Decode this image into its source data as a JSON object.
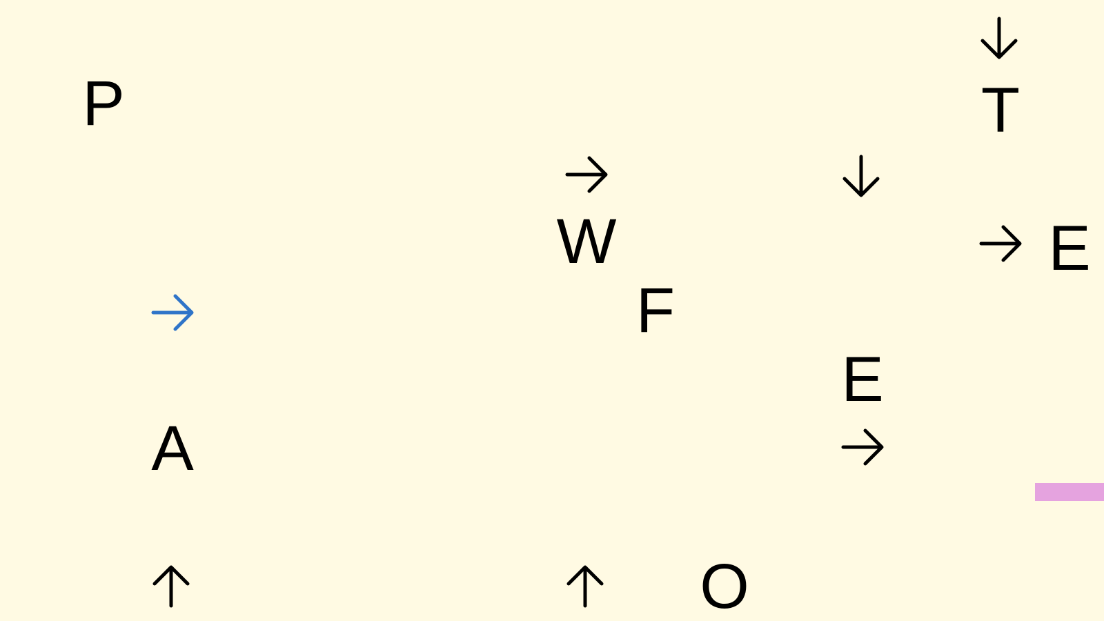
{
  "board": {
    "letters": {
      "p": "P",
      "t": "T",
      "w": "W",
      "e_right": "E",
      "f": "F",
      "e_mid": "E",
      "a": "A",
      "o": "O"
    },
    "arrows": [
      {
        "direction": "down",
        "icon": "arrow-down-icon",
        "color": "#000000"
      },
      {
        "direction": "right",
        "icon": "arrow-right-icon",
        "color": "#000000"
      },
      {
        "direction": "down",
        "icon": "arrow-down-icon",
        "color": "#000000"
      },
      {
        "direction": "right",
        "icon": "arrow-right-icon",
        "color": "#000000"
      },
      {
        "direction": "right",
        "icon": "arrow-right-icon",
        "color": "#2f74c8",
        "selected": true
      },
      {
        "direction": "right",
        "icon": "arrow-right-icon",
        "color": "#000000"
      },
      {
        "direction": "up",
        "icon": "arrow-up-icon",
        "color": "#000000"
      },
      {
        "direction": "up",
        "icon": "arrow-up-icon",
        "color": "#000000"
      }
    ],
    "marker_color": "#e5a3df",
    "background_color": "#fffae3"
  }
}
